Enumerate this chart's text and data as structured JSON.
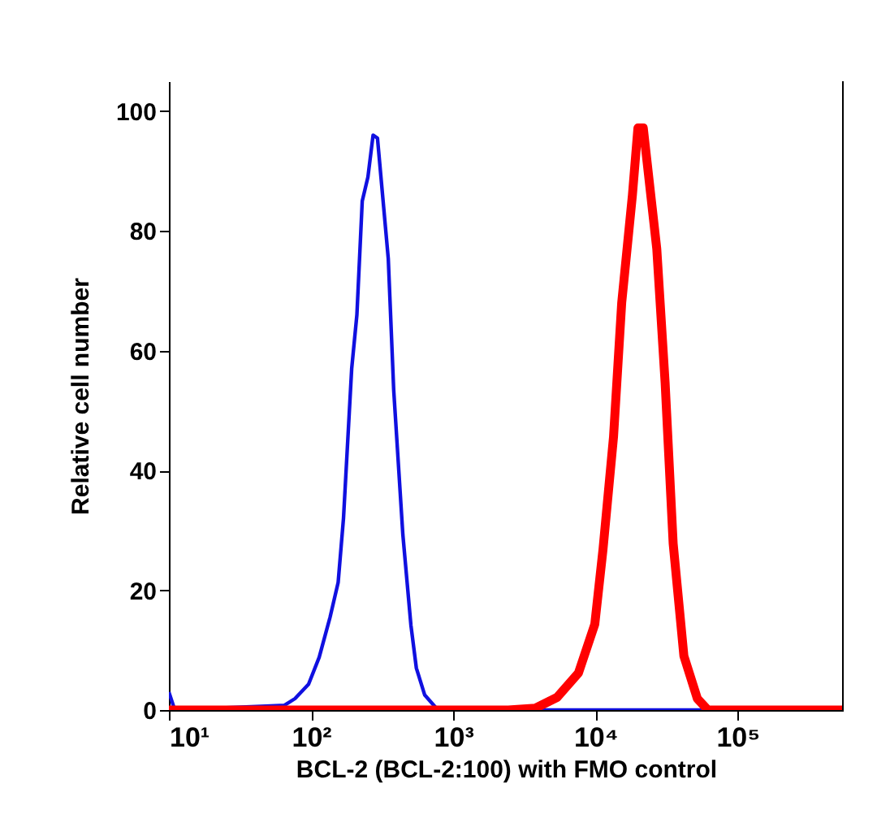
{
  "chart_data": {
    "type": "line",
    "xlabel": "BCL-2 (BCL-2:100) with FMO control",
    "ylabel": "Relative cell number",
    "log": "x",
    "xlim": [
      10,
      550000
    ],
    "xticks": [
      {
        "value": 10,
        "label": "10¹"
      },
      {
        "value": 100,
        "label": "10²"
      },
      {
        "value": 1000,
        "label": "10³"
      },
      {
        "value": 10000,
        "label": "10⁴"
      },
      {
        "value": 100000,
        "label": "10⁵"
      }
    ],
    "ylim": [
      0,
      105
    ],
    "yticks": [
      0,
      20,
      40,
      60,
      80,
      100
    ],
    "series": [
      {
        "color": "#1010e0",
        "x": [
          10,
          11,
          52,
          65,
          77,
          96,
          114,
          136,
          155,
          169,
          193,
          210,
          229,
          251,
          273,
          293,
          349,
          381,
          442,
          504,
          550,
          630,
          780,
          550000
        ],
        "values": [
          3,
          0,
          0.7,
          0.8,
          1.9,
          4.3,
          8.8,
          15.5,
          21.3,
          32,
          57,
          66,
          85,
          89,
          96,
          95.5,
          75.4,
          53.5,
          29.3,
          14.1,
          7,
          2.5,
          0,
          0
        ]
      },
      {
        "color": "#ff0000",
        "x": [
          10,
          2440,
          3780,
          5360,
          7600,
          9890,
          11300,
          13400,
          15300,
          18200,
          19900,
          21700,
          27000,
          30900,
          35200,
          41900,
          52100,
          61800,
          550000
        ],
        "values": [
          0,
          0,
          0.3,
          2.1,
          6.2,
          14.3,
          26.8,
          45.6,
          68,
          86,
          97.2,
          97.2,
          77,
          54.7,
          27.8,
          9,
          1.9,
          0,
          0
        ]
      }
    ]
  }
}
